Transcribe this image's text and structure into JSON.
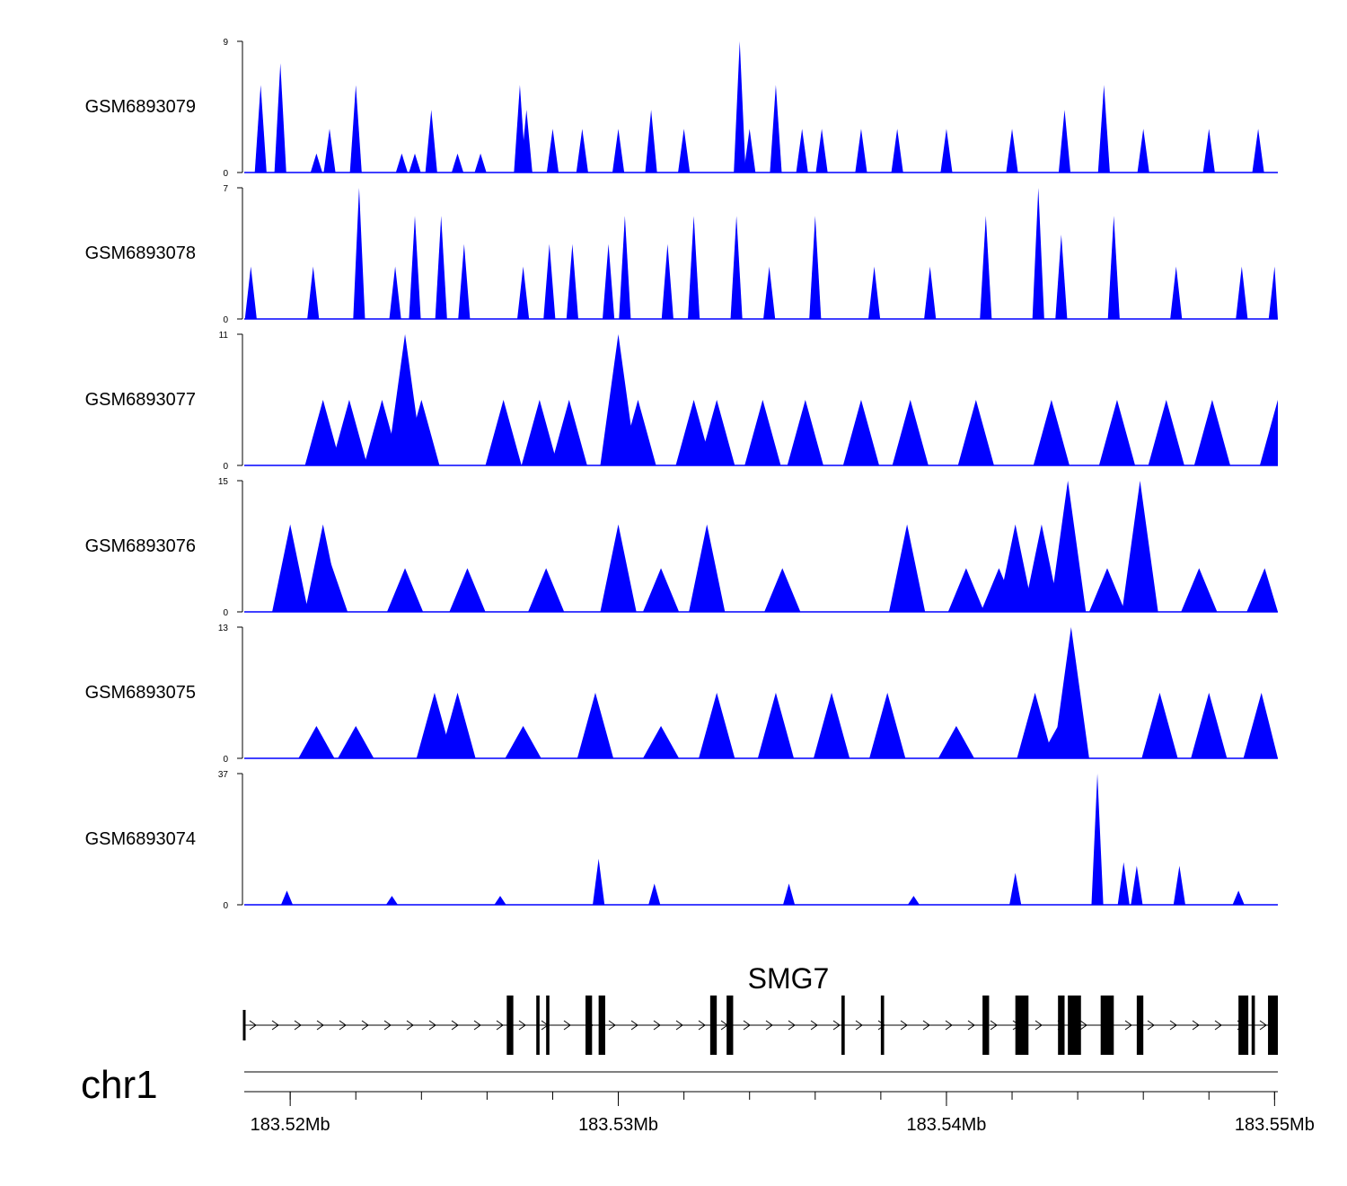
{
  "chart_data": {
    "type": "area",
    "title": "",
    "chromosome": "chr1",
    "fill_color": "#0000ff",
    "x_range_mb": [
      183.5186,
      183.5501
    ],
    "x_ticks": [
      {
        "value": 183.52,
        "label": "183.52Mb"
      },
      {
        "value": 183.53,
        "label": "183.53Mb"
      },
      {
        "value": 183.54,
        "label": "183.54Mb"
      },
      {
        "value": 183.55,
        "label": "183.55Mb"
      }
    ],
    "minor_tick_step_mb": 0.002,
    "tracks": [
      {
        "name": "GSM6893079",
        "ymin": 0,
        "ymax": 9,
        "ymin_label": "0",
        "ymax_label": "9",
        "peaks": [
          [
            183.5191,
            6
          ],
          [
            183.5197,
            7.5
          ],
          [
            183.5208,
            1.3
          ],
          [
            183.5212,
            3
          ],
          [
            183.522,
            6
          ],
          [
            183.5228,
            0
          ],
          [
            183.5234,
            1.3
          ],
          [
            183.5238,
            1.3
          ],
          [
            183.5243,
            4.3
          ],
          [
            183.5251,
            1.3
          ],
          [
            183.5258,
            1.3
          ],
          [
            183.527,
            6
          ],
          [
            183.5272,
            4.3
          ],
          [
            183.528,
            3
          ],
          [
            183.5289,
            3
          ],
          [
            183.53,
            3
          ],
          [
            183.531,
            4.3
          ],
          [
            183.532,
            3
          ],
          [
            183.5337,
            9
          ],
          [
            183.534,
            3
          ],
          [
            183.5348,
            6
          ],
          [
            183.5356,
            3
          ],
          [
            183.5362,
            3
          ],
          [
            183.5374,
            3
          ],
          [
            183.5385,
            3
          ],
          [
            183.54,
            3
          ],
          [
            183.542,
            3
          ],
          [
            183.5436,
            4.3
          ],
          [
            183.5448,
            6
          ],
          [
            183.546,
            3
          ],
          [
            183.548,
            3
          ],
          [
            183.5495,
            3
          ]
        ]
      },
      {
        "name": "GSM6893078",
        "ymin": 0,
        "ymax": 7,
        "ymin_label": "0",
        "ymax_label": "7",
        "peaks": [
          [
            183.5188,
            2.8
          ],
          [
            183.5207,
            2.8
          ],
          [
            183.5221,
            7
          ],
          [
            183.5232,
            2.8
          ],
          [
            183.5238,
            5.5
          ],
          [
            183.5246,
            5.5
          ],
          [
            183.5253,
            4
          ],
          [
            183.5271,
            2.8
          ],
          [
            183.5279,
            4
          ],
          [
            183.5286,
            4
          ],
          [
            183.5297,
            4
          ],
          [
            183.5302,
            5.5
          ],
          [
            183.5315,
            4
          ],
          [
            183.5323,
            5.5
          ],
          [
            183.5336,
            5.5
          ],
          [
            183.5346,
            2.8
          ],
          [
            183.536,
            5.5
          ],
          [
            183.5378,
            2.8
          ],
          [
            183.5395,
            2.8
          ],
          [
            183.5412,
            5.5
          ],
          [
            183.5428,
            7
          ],
          [
            183.5435,
            4.5
          ],
          [
            183.5451,
            5.5
          ],
          [
            183.547,
            2.8
          ],
          [
            183.549,
            2.8
          ],
          [
            183.55,
            2.8
          ]
        ]
      },
      {
        "name": "GSM6893077",
        "ymin": 0,
        "ymax": 11,
        "ymin_label": "0",
        "ymax_label": "11",
        "peaks": [
          [
            183.521,
            5.5
          ],
          [
            183.5218,
            5.5
          ],
          [
            183.5228,
            5.5
          ],
          [
            183.5235,
            11
          ],
          [
            183.524,
            5.5
          ],
          [
            183.5265,
            5.5
          ],
          [
            183.5276,
            5.5
          ],
          [
            183.5285,
            5.5
          ],
          [
            183.53,
            11
          ],
          [
            183.5306,
            5.5
          ],
          [
            183.5323,
            5.5
          ],
          [
            183.533,
            5.5
          ],
          [
            183.5344,
            5.5
          ],
          [
            183.5357,
            5.5
          ],
          [
            183.5374,
            5.5
          ],
          [
            183.5389,
            5.5
          ],
          [
            183.5409,
            5.5
          ],
          [
            183.5432,
            5.5
          ],
          [
            183.5452,
            5.5
          ],
          [
            183.5467,
            5.5
          ],
          [
            183.5481,
            5.5
          ],
          [
            183.5501,
            5.5
          ]
        ]
      },
      {
        "name": "GSM6893076",
        "ymin": 0,
        "ymax": 15,
        "ymin_label": "0",
        "ymax_label": "15",
        "peaks": [
          [
            183.52,
            10
          ],
          [
            183.521,
            10
          ],
          [
            183.5212,
            6
          ],
          [
            183.5235,
            5
          ],
          [
            183.5254,
            5
          ],
          [
            183.5278,
            5
          ],
          [
            183.53,
            10
          ],
          [
            183.5313,
            5
          ],
          [
            183.5327,
            10
          ],
          [
            183.535,
            5
          ],
          [
            183.5388,
            10
          ],
          [
            183.5406,
            5
          ],
          [
            183.5416,
            5
          ],
          [
            183.5421,
            10
          ],
          [
            183.5429,
            10
          ],
          [
            183.5437,
            15
          ],
          [
            183.5449,
            5
          ],
          [
            183.5459,
            15
          ],
          [
            183.5477,
            5
          ],
          [
            183.5497,
            5
          ]
        ]
      },
      {
        "name": "GSM6893075",
        "ymin": 0,
        "ymax": 13,
        "ymin_label": "0",
        "ymax_label": "13",
        "peaks": [
          [
            183.5208,
            3.2
          ],
          [
            183.522,
            3.2
          ],
          [
            183.5244,
            6.5
          ],
          [
            183.5251,
            6.5
          ],
          [
            183.5271,
            3.2
          ],
          [
            183.5293,
            6.5
          ],
          [
            183.5313,
            3.2
          ],
          [
            183.533,
            6.5
          ],
          [
            183.5348,
            6.5
          ],
          [
            183.5365,
            6.5
          ],
          [
            183.5382,
            6.5
          ],
          [
            183.5403,
            3.2
          ],
          [
            183.5427,
            6.5
          ],
          [
            183.5438,
            13
          ],
          [
            183.5434,
            3.2
          ],
          [
            183.5465,
            6.5
          ],
          [
            183.548,
            6.5
          ],
          [
            183.5496,
            6.5
          ]
        ]
      },
      {
        "name": "GSM6893074",
        "ymin": 0,
        "ymax": 37,
        "ymin_label": "0",
        "ymax_label": "37",
        "peaks": [
          [
            183.5199,
            4
          ],
          [
            183.5231,
            2.5
          ],
          [
            183.5264,
            2.5
          ],
          [
            183.5294,
            13
          ],
          [
            183.5311,
            6
          ],
          [
            183.5352,
            6
          ],
          [
            183.539,
            2.5
          ],
          [
            183.5421,
            9
          ],
          [
            183.5446,
            37
          ],
          [
            183.5454,
            12
          ],
          [
            183.5458,
            11
          ],
          [
            183.5471,
            11
          ],
          [
            183.5489,
            4
          ]
        ]
      }
    ],
    "gene": {
      "name": "SMG7",
      "strand": "+",
      "start_mb": 183.5186,
      "end_mb": 183.5501,
      "exons": [
        [
          183.5266,
          183.5268
        ],
        [
          183.5275,
          183.5276
        ],
        [
          183.5278,
          183.5279
        ],
        [
          183.529,
          183.5292
        ],
        [
          183.5294,
          183.5296
        ],
        [
          183.5328,
          183.533
        ],
        [
          183.5333,
          183.5335
        ],
        [
          183.5368,
          183.5369
        ],
        [
          183.538,
          183.5381
        ],
        [
          183.5411,
          183.5413
        ],
        [
          183.5421,
          183.5425
        ],
        [
          183.5434,
          183.5436
        ],
        [
          183.5437,
          183.5441
        ],
        [
          183.5447,
          183.5451
        ],
        [
          183.5458,
          183.546
        ],
        [
          183.5489,
          183.5492
        ],
        [
          183.5493,
          183.5494
        ],
        [
          183.5498,
          183.5501
        ]
      ]
    }
  }
}
